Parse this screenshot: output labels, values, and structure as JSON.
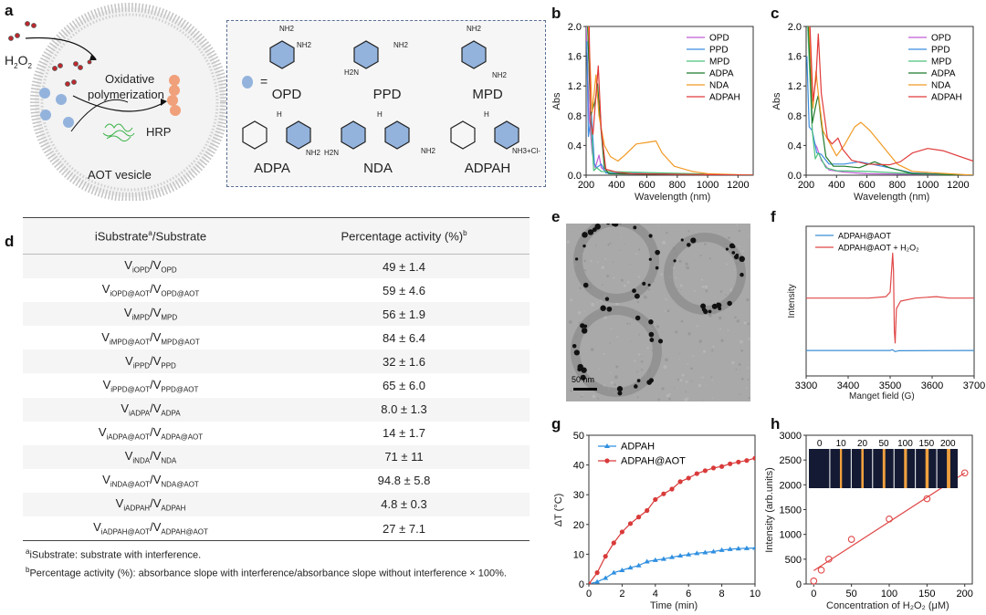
{
  "panels": {
    "a": "a",
    "b": "b",
    "c": "c",
    "d": "d",
    "e": "e",
    "f": "f",
    "g": "g",
    "h": "h"
  },
  "scheme": {
    "h2o2_label": "H",
    "h2o2_sub1": "2",
    "h2o2_o": "O",
    "h2o2_sub2": "2",
    "process_line1": "Oxidative",
    "process_line2": "polymerization",
    "enzyme": "HRP",
    "vesicle": "AOT vesicle",
    "equals": "=",
    "molecules": [
      {
        "name": "OPD",
        "groups": [
          "NH2",
          "NH2"
        ]
      },
      {
        "name": "PPD",
        "groups": [
          "H2N",
          "NH2"
        ]
      },
      {
        "name": "MPD",
        "groups": [
          "NH2",
          "NH2"
        ]
      },
      {
        "name": "ADPA",
        "groups": [
          "H",
          "NH2"
        ]
      },
      {
        "name": "NDA",
        "groups": [
          "H2N",
          "H",
          "NH2"
        ]
      },
      {
        "name": "ADPAH",
        "groups": [
          "H",
          "NH3+Cl-"
        ]
      }
    ],
    "colors": {
      "substrate": "#93b3dd",
      "polymer": "#f0a07a",
      "membrane": "#bbbbbb",
      "h2o2": "#c0282d",
      "hrp": "#3cb24a"
    }
  },
  "table": {
    "header": {
      "col1": "iSubstrate",
      "col1_sup": "a",
      "col1_rest": "/Substrate",
      "col2": "Percentage activity (%)",
      "col2_sup": "b"
    },
    "symbol": "V",
    "rows": [
      {
        "num": "iOPD",
        "den": "OPD",
        "value": "49 ± 1.4"
      },
      {
        "num": "iOPD@AOT",
        "den": "OPD@AOT",
        "value": "59 ± 4.6"
      },
      {
        "num": "iMPD",
        "den": "MPD",
        "value": "56 ± 1.9"
      },
      {
        "num": "iMPD@AOT",
        "den": "MPD@AOT",
        "value": "84 ± 6.4"
      },
      {
        "num": "iPPD",
        "den": "PPD",
        "value": "32 ± 1.6"
      },
      {
        "num": "iPPD@AOT",
        "den": "PPD@AOT",
        "value": "65 ± 6.0"
      },
      {
        "num": "iADPA",
        "den": "ADPA",
        "value": "8.0 ± 1.3"
      },
      {
        "num": "iADPA@AOT",
        "den": "ADPA@AOT",
        "value": "14 ± 1.7"
      },
      {
        "num": "iNDA",
        "den": "NDA",
        "value": "71 ± 11"
      },
      {
        "num": "iNDA@AOT",
        "den": "NDA@AOT",
        "value": "94.8 ± 5.8"
      },
      {
        "num": "iADPAH",
        "den": "ADPAH",
        "value": "4.8 ± 0.3"
      },
      {
        "num": "iADPAH@AOT",
        "den": "ADPAH@AOT",
        "value": "27 ± 7.1"
      }
    ],
    "footnotes": [
      {
        "sup": "a",
        "text": "iSubstrate: substrate with interference."
      },
      {
        "sup": "b",
        "text": "Percentage activity (%): absorbance slope with interference/absorbance slope without interference × 100%."
      }
    ]
  },
  "tem": {
    "scale_bar": "50 nm"
  },
  "chart_data": [
    {
      "id": "b",
      "type": "line",
      "xlabel": "Wavelength (nm)",
      "ylabel": "Abs",
      "xlim": [
        200,
        1300
      ],
      "ylim": [
        0,
        2.0
      ],
      "xticks": [
        200,
        400,
        600,
        800,
        1000,
        1200
      ],
      "yticks": [
        0.0,
        0.4,
        0.8,
        1.2,
        1.6,
        2.0
      ],
      "ytick_labels": [
        "0.0",
        "0.4",
        "0.8",
        "1.2",
        "1.6",
        "2.0"
      ],
      "legend": "top-right",
      "series": [
        {
          "name": "OPD",
          "color": "#c05cd6",
          "points": [
            [
              200,
              2
            ],
            [
              220,
              0.8
            ],
            [
              240,
              0.3
            ],
            [
              260,
              0.1
            ],
            [
              285,
              0.27
            ],
            [
              300,
              0.1
            ],
            [
              350,
              0.02
            ],
            [
              1300,
              0
            ]
          ]
        },
        {
          "name": "PPD",
          "color": "#3a8de0",
          "points": [
            [
              205,
              1.8
            ],
            [
              215,
              0.52
            ],
            [
              235,
              0.82
            ],
            [
              255,
              0.15
            ],
            [
              270,
              0.1
            ],
            [
              300,
              0.15
            ],
            [
              330,
              0.03
            ],
            [
              1300,
              0
            ]
          ]
        },
        {
          "name": "MPD",
          "color": "#4cc27a",
          "points": [
            [
              210,
              2
            ],
            [
              230,
              0.8
            ],
            [
              250,
              0.06
            ],
            [
              270,
              0.1
            ],
            [
              300,
              0.05
            ],
            [
              1300,
              0
            ]
          ]
        },
        {
          "name": "ADPA",
          "color": "#1f7a2a",
          "points": [
            [
              210,
              2
            ],
            [
              230,
              0.8
            ],
            [
              260,
              1.0
            ],
            [
              275,
              1.23
            ],
            [
              290,
              0.8
            ],
            [
              320,
              0.1
            ],
            [
              350,
              0.02
            ],
            [
              1300,
              0
            ]
          ]
        },
        {
          "name": "NDA",
          "color": "#f19a24",
          "points": [
            [
              215,
              2
            ],
            [
              240,
              0.85
            ],
            [
              265,
              1.35
            ],
            [
              285,
              0.8
            ],
            [
              320,
              0.4
            ],
            [
              360,
              0.25
            ],
            [
              410,
              0.19
            ],
            [
              460,
              0.28
            ],
            [
              530,
              0.42
            ],
            [
              600,
              0.44
            ],
            [
              660,
              0.46
            ],
            [
              700,
              0.3
            ],
            [
              780,
              0.12
            ],
            [
              900,
              0.05
            ],
            [
              1000,
              0.02
            ],
            [
              1300,
              0
            ]
          ]
        },
        {
          "name": "ADPAH",
          "color": "#e03a3a",
          "points": [
            [
              220,
              2
            ],
            [
              230,
              0.7
            ],
            [
              245,
              0.55
            ],
            [
              270,
              1.2
            ],
            [
              280,
              1.47
            ],
            [
              300,
              0.6
            ],
            [
              330,
              0.08
            ],
            [
              400,
              0.04
            ],
            [
              500,
              0.02
            ],
            [
              1300,
              0
            ]
          ]
        }
      ]
    },
    {
      "id": "c",
      "type": "line",
      "xlabel": "Wavelength (nm)",
      "ylabel": "Abs",
      "xlim": [
        200,
        1300
      ],
      "ylim": [
        0,
        2.0
      ],
      "xticks": [
        200,
        400,
        600,
        800,
        1000,
        1200
      ],
      "yticks": [
        0.0,
        0.4,
        0.8,
        1.2,
        1.6,
        2.0
      ],
      "ytick_labels": [
        "0.0",
        "0.4",
        "0.8",
        "1.2",
        "1.6",
        "2.0"
      ],
      "legend": "top-right",
      "series": [
        {
          "name": "OPD",
          "color": "#c05cd6",
          "points": [
            [
              215,
              2
            ],
            [
              240,
              0.6
            ],
            [
              250,
              0.45
            ],
            [
              270,
              0.38
            ],
            [
              300,
              0.2
            ],
            [
              350,
              0.07
            ],
            [
              450,
              0.04
            ],
            [
              600,
              0.02
            ],
            [
              1300,
              0
            ]
          ]
        },
        {
          "name": "PPD",
          "color": "#3a8de0",
          "points": [
            [
              205,
              1.6
            ],
            [
              220,
              0.65
            ],
            [
              240,
              0.6
            ],
            [
              270,
              0.3
            ],
            [
              300,
              0.28
            ],
            [
              350,
              0.15
            ],
            [
              450,
              0.15
            ],
            [
              550,
              0.18
            ],
            [
              700,
              0.12
            ],
            [
              900,
              0.03
            ],
            [
              1300,
              0
            ]
          ]
        },
        {
          "name": "MPD",
          "color": "#4cc27a",
          "points": [
            [
              210,
              2
            ],
            [
              240,
              0.6
            ],
            [
              260,
              0.22
            ],
            [
              280,
              0.3
            ],
            [
              330,
              0.1
            ],
            [
              400,
              0.06
            ],
            [
              600,
              0.05
            ],
            [
              900,
              0.02
            ],
            [
              1300,
              0
            ]
          ]
        },
        {
          "name": "ADPA",
          "color": "#1f7a2a",
          "points": [
            [
              215,
              2
            ],
            [
              240,
              0.7
            ],
            [
              270,
              1.0
            ],
            [
              280,
              1.07
            ],
            [
              300,
              0.7
            ],
            [
              330,
              0.25
            ],
            [
              380,
              0.12
            ],
            [
              450,
              0.12
            ],
            [
              550,
              0.1
            ],
            [
              650,
              0.18
            ],
            [
              750,
              0.1
            ],
            [
              900,
              0.02
            ],
            [
              1300,
              0
            ]
          ]
        },
        {
          "name": "NDA",
          "color": "#f19a24",
          "points": [
            [
              220,
              2
            ],
            [
              245,
              0.9
            ],
            [
              265,
              1.4
            ],
            [
              280,
              1.1
            ],
            [
              310,
              0.6
            ],
            [
              350,
              0.45
            ],
            [
              400,
              0.26
            ],
            [
              450,
              0.4
            ],
            [
              520,
              0.65
            ],
            [
              560,
              0.71
            ],
            [
              620,
              0.6
            ],
            [
              700,
              0.4
            ],
            [
              800,
              0.15
            ],
            [
              900,
              0.05
            ],
            [
              1300,
              0
            ]
          ]
        },
        {
          "name": "ADPAH",
          "color": "#e03a3a",
          "points": [
            [
              225,
              2
            ],
            [
              245,
              1.0
            ],
            [
              265,
              1.3
            ],
            [
              280,
              1.9
            ],
            [
              300,
              1.1
            ],
            [
              340,
              0.5
            ],
            [
              370,
              0.42
            ],
            [
              410,
              0.5
            ],
            [
              440,
              0.35
            ],
            [
              500,
              0.2
            ],
            [
              600,
              0.15
            ],
            [
              750,
              0.14
            ],
            [
              820,
              0.18
            ],
            [
              900,
              0.3
            ],
            [
              1000,
              0.36
            ],
            [
              1100,
              0.33
            ],
            [
              1300,
              0.19
            ]
          ]
        }
      ]
    },
    {
      "id": "f",
      "type": "line",
      "xlabel": "Manget field (G)",
      "ylabel": "Intensity",
      "xlim": [
        3300,
        3700
      ],
      "ylim": [
        0,
        1
      ],
      "xticks": [
        3300,
        3400,
        3500,
        3600,
        3700
      ],
      "yticks": [],
      "legend": "top-left",
      "series": [
        {
          "name": "ADPAH@AOT",
          "color": "#3a8ed4",
          "points": [
            [
              3300,
              0.17
            ],
            [
              3500,
              0.17
            ],
            [
              3505,
              0.175
            ],
            [
              3512,
              0.163
            ],
            [
              3520,
              0.168
            ],
            [
              3700,
              0.17
            ]
          ]
        },
        {
          "name": "ADPAH@AOT + H₂O₂",
          "color": "#e04848",
          "points": [
            [
              3300,
              0.52
            ],
            [
              3450,
              0.52
            ],
            [
              3490,
              0.53
            ],
            [
              3500,
              0.56
            ],
            [
              3506,
              0.82
            ],
            [
              3508,
              0.7
            ],
            [
              3510,
              0.3
            ],
            [
              3512,
              0.22
            ],
            [
              3515,
              0.45
            ],
            [
              3525,
              0.5
            ],
            [
              3560,
              0.52
            ],
            [
              3610,
              0.53
            ],
            [
              3640,
              0.52
            ],
            [
              3700,
              0.52
            ]
          ]
        }
      ]
    },
    {
      "id": "g",
      "type": "line",
      "xlabel": "Time (min)",
      "ylabel": "ΔT (°C)",
      "xlim": [
        0,
        10
      ],
      "ylim": [
        0,
        50
      ],
      "xticks": [
        0,
        2,
        4,
        6,
        8,
        10
      ],
      "yticks": [
        0,
        10,
        20,
        30,
        40,
        50
      ],
      "legend": "top-left",
      "x": [
        0,
        0.5,
        1,
        1.5,
        2,
        2.5,
        3,
        3.5,
        4,
        4.5,
        5,
        5.5,
        6,
        6.5,
        7,
        7.5,
        8,
        8.5,
        9,
        9.5,
        10
      ],
      "series": [
        {
          "name": "ADPAH",
          "color": "#2f8fe0",
          "marker": "triangle",
          "values": [
            0,
            0.7,
            2,
            3.8,
            4.6,
            5.5,
            6.2,
            7.5,
            8,
            8.4,
            9,
            9.5,
            9.9,
            10.3,
            10.6,
            10.9,
            11.4,
            11.7,
            11.9,
            12,
            12.1
          ]
        },
        {
          "name": "ADPAH@AOT",
          "color": "#d93a3a",
          "marker": "circle",
          "values": [
            0,
            3.8,
            9.3,
            13.8,
            17.5,
            20.3,
            22.5,
            24.7,
            28.4,
            30.3,
            31.9,
            34.4,
            35.6,
            37.1,
            38.1,
            39,
            39.5,
            40.4,
            41,
            41.5,
            42.3
          ]
        }
      ]
    },
    {
      "id": "h",
      "type": "scatter",
      "xlabel": "Concentration of H₂O₂ (μM)",
      "ylabel": "Intensity (arb.units)",
      "xlim": [
        -10,
        210
      ],
      "ylim": [
        0,
        3000
      ],
      "xticks": [
        0,
        50,
        100,
        150,
        200
      ],
      "yticks": [
        0,
        500,
        1000,
        1500,
        2000,
        2500,
        3000
      ],
      "x": [
        0,
        10,
        20,
        50,
        100,
        150,
        200
      ],
      "values": [
        60,
        280,
        500,
        900,
        1310,
        1720,
        2240
      ],
      "fit": [
        [
          0,
          270
        ],
        [
          200,
          2240
        ]
      ],
      "color": "#e04848",
      "inset_labels": [
        "0",
        "10",
        "20",
        "50",
        "100",
        "150",
        "200"
      ]
    }
  ]
}
